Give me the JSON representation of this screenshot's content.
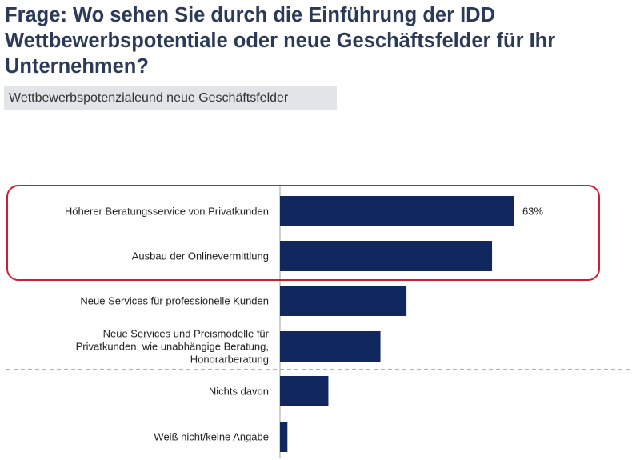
{
  "title": "Frage: Wo sehen Sie durch die Einführung der IDD Wettbewerbspotentiale oder neue Geschäftsfelder für Ihr Unternehmen?",
  "subtitle": "Wettbewerbspotenzialeund neue Geschäftsfelder",
  "colors": {
    "bar": "#11285e",
    "highlight": "#cc1f2d",
    "divider": "#808080",
    "axis": "#a0a0a0"
  },
  "chart_data": {
    "type": "bar",
    "orientation": "horizontal",
    "categories": [
      "Höherer Beratungsservice von Privatkunden",
      "Ausbau der Onlinevermittlung",
      "Neue Services für professionelle Kunden",
      "Neue Services und Preismodelle für Privatkunden, wie unabhängige Beratung, Honorarberatung",
      "Nichts davon",
      "Weiß nicht/keine Angabe"
    ],
    "category_lines": [
      [
        "Höherer Beratungsservice von Privatkunden"
      ],
      [
        "Ausbau der Onlinevermittlung"
      ],
      [
        "Neue Services für professionelle Kunden"
      ],
      [
        "Neue Services und Preismodelle für",
        "Privatkunden, wie unabhängige Beratung,",
        "Honorarberatung"
      ],
      [
        "Nichts davon"
      ],
      [
        "Weiß nicht/keine Angabe"
      ]
    ],
    "values": [
      63,
      57,
      34,
      27,
      13,
      2
    ],
    "data_labels": [
      "63%",
      "",
      "",
      "",
      "",
      ""
    ],
    "unit": "%",
    "xlim": [
      0,
      100
    ],
    "grid": false,
    "highlighted_categories": [
      0,
      1
    ],
    "divider_after_index": 3
  }
}
